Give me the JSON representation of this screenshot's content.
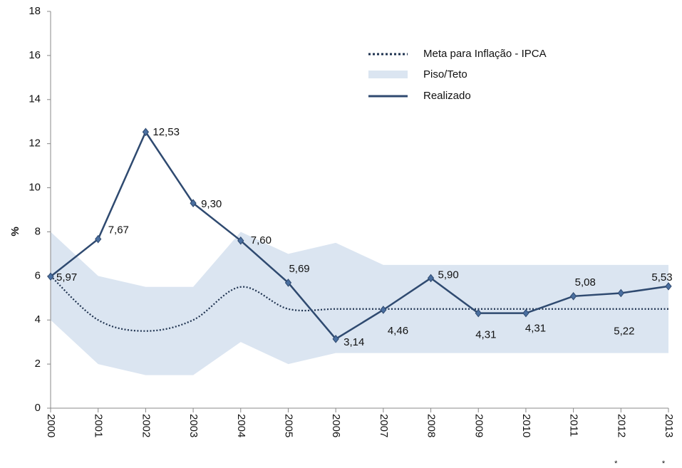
{
  "chart_data": {
    "type": "line",
    "y_label": "%",
    "categories": [
      "2000",
      "2001",
      "2002",
      "2003",
      "2004",
      "2005",
      "2006",
      "2007",
      "2008",
      "2009",
      "2010",
      "2011",
      "2012",
      "2013"
    ],
    "category_markers": [
      null,
      null,
      null,
      null,
      null,
      null,
      null,
      null,
      null,
      null,
      null,
      null,
      "*",
      "*"
    ],
    "ylim": [
      0,
      18
    ],
    "yticks": [
      0,
      2,
      4,
      6,
      8,
      10,
      12,
      14,
      16,
      18
    ],
    "legend": "upper right",
    "series": [
      {
        "name": "Meta para Inflação - IPCA",
        "color": "#1f3350",
        "style": "dotted",
        "values": [
          6,
          4,
          3.5,
          4,
          5.5,
          4.5,
          4.5,
          4.5,
          4.5,
          4.5,
          4.5,
          4.5,
          4.5,
          4.5
        ]
      },
      {
        "name": "Piso/Teto",
        "color": "#dbe5f1",
        "style": "band",
        "low": [
          4,
          2,
          1.5,
          1.5,
          3,
          2,
          2.5,
          2.5,
          2.5,
          2.5,
          2.5,
          2.5,
          2.5,
          2.5
        ],
        "high": [
          8,
          6,
          5.5,
          5.5,
          8,
          7,
          7.5,
          6.5,
          6.5,
          6.5,
          6.5,
          6.5,
          6.5,
          6.5
        ]
      },
      {
        "name": "Realizado",
        "color": "#2f4a70",
        "style": "solid",
        "values": [
          5.97,
          7.67,
          12.53,
          9.3,
          7.6,
          5.69,
          3.14,
          4.46,
          5.9,
          4.31,
          4.31,
          5.08,
          5.22,
          5.53
        ],
        "value_labels": [
          "5,97",
          "7,67",
          "12,53",
          "9,30",
          "7,60",
          "5,69",
          "3,14",
          "4,46",
          "5,90",
          "4,31",
          "4,31",
          "5,08",
          "5,22",
          "5,53"
        ]
      }
    ]
  }
}
